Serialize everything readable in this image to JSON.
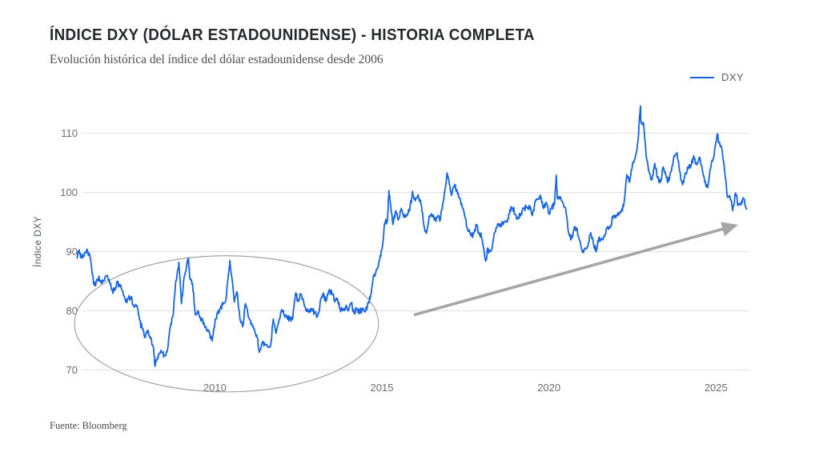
{
  "header": {
    "title": "ÍNDICE DXY (DÓLAR ESTADOUNIDENSE) - HISTORIA COMPLETA",
    "subtitle": "Evolución histórica del índice del dólar estadounidense desde 2006"
  },
  "legend": {
    "label": "DXY"
  },
  "y_axis_title": "Índice DXY",
  "source": "Fuente: Bloomberg",
  "colors": {
    "line": "#1464e4",
    "grid": "#e0e0e0",
    "tick_text": "#6e6e6e",
    "annotation_arrow": "#a6a6a6",
    "annotation_ellipse": "#9a9a9a"
  },
  "chart_data": {
    "type": "line",
    "title": "ÍNDICE DXY (DÓLAR ESTADOUNIDENSE) - HISTORIA COMPLETA",
    "subtitle": "Evolución histórica del índice del dólar estadounidense desde 2006",
    "xlabel": "",
    "ylabel": "Índice DXY",
    "x_ticks": [
      2010,
      2015,
      2020,
      2025
    ],
    "y_ticks": [
      70,
      80,
      90,
      100,
      110
    ],
    "x_range": [
      2005.88,
      2025.95
    ],
    "ylim": [
      66,
      117
    ],
    "grid": "horizontal-only",
    "legend_position": "top-right",
    "series": [
      {
        "name": "DXY",
        "cadence": "monthly (values are month-end closes, Jan 2006 - Nov 2025)",
        "first_month_x": 2006.083,
        "monthly_values": [
          89.2,
          90.4,
          89.5,
          86.2,
          84.2,
          85.4,
          85.1,
          85.0,
          85.9,
          85.3,
          83.5,
          83.4,
          85.0,
          84.1,
          83.2,
          81.5,
          82.2,
          82.4,
          80.6,
          80.9,
          78.4,
          76.9,
          75.5,
          76.7,
          75.5,
          73.7,
          71.8,
          72.7,
          72.9,
          72.5,
          73.4,
          77.2,
          79.1,
          85.1,
          87.4,
          81.2,
          85.8,
          88.0,
          85.4,
          84.6,
          79.3,
          80.0,
          78.3,
          78.1,
          76.7,
          76.4,
          74.9,
          77.9,
          79.5,
          80.4,
          81.1,
          81.9,
          86.6,
          86.0,
          81.5,
          83.2,
          78.7,
          77.3,
          81.2,
          79.0,
          77.7,
          76.9,
          75.9,
          73.0,
          74.6,
          74.3,
          73.9,
          74.1,
          78.6,
          76.2,
          78.3,
          80.2,
          79.3,
          78.7,
          79.0,
          78.8,
          83.0,
          81.6,
          82.8,
          81.2,
          79.9,
          80.0,
          80.2,
          79.8,
          79.2,
          81.9,
          83.0,
          81.7,
          83.4,
          83.1,
          81.5,
          82.1,
          80.2,
          80.2,
          80.7,
          80.0,
          81.3,
          79.7,
          80.2,
          79.5,
          80.4,
          79.8,
          81.4,
          82.7,
          86.0,
          86.9,
          88.4,
          90.3,
          94.8,
          95.3,
          98.4,
          94.6,
          96.9,
          95.5,
          97.3,
          95.8,
          96.3,
          97.0,
          100.2,
          98.6,
          99.6,
          98.2,
          94.6,
          93.1,
          95.9,
          96.1,
          95.5,
          96.0,
          95.4,
          98.4,
          101.5,
          102.2,
          99.5,
          101.1,
          100.4,
          99.0,
          97.3,
          95.6,
          93.4,
          92.7,
          93.1,
          94.6,
          93.1,
          92.1,
          89.1,
          90.6,
          90.0,
          91.8,
          94.0,
          94.5,
          94.6,
          95.1,
          95.0,
          97.1,
          97.3,
          96.2,
          95.6,
          96.2,
          97.3,
          97.5,
          97.8,
          96.1,
          98.5,
          98.9,
          99.4,
          97.3,
          98.3,
          96.4,
          97.4,
          98.1,
          99.0,
          99.0,
          98.3,
          97.4,
          93.3,
          92.1,
          93.9,
          94.0,
          91.9,
          89.9,
          90.6,
          90.9,
          93.2,
          91.3,
          90.0,
          92.4,
          92.2,
          92.6,
          94.2,
          94.1,
          96.0,
          95.7,
          96.5,
          96.7,
          98.3,
          103.0,
          101.8,
          104.7,
          105.9,
          108.8,
          112.1,
          111.5,
          105.9,
          103.5,
          102.1,
          104.9,
          102.5,
          101.7,
          104.3,
          102.9,
          101.9,
          103.6,
          106.2,
          106.7,
          103.5,
          101.3,
          103.3,
          104.1,
          104.5,
          106.2,
          104.7,
          105.9,
          104.1,
          101.7,
          100.8,
          104.0,
          105.7,
          108.5,
          108.4,
          107.6,
          104.2,
          99.5,
          99.3,
          96.9,
          99.9,
          97.8,
          97.9,
          98.9,
          97.2
        ],
        "pre_2006_points": [
          [
            2005.88,
            88.9
          ],
          [
            2005.94,
            90.3
          ],
          [
            2005.99,
            89.0
          ]
        ],
        "intramonth_extremes": [
          [
            2008.2,
            70.9
          ],
          [
            2008.92,
            88.2
          ],
          [
            2009.21,
            88.9
          ],
          [
            2010.45,
            88.5
          ],
          [
            2015.21,
            100.3
          ],
          [
            2016.95,
            103.3
          ],
          [
            2018.12,
            88.6
          ],
          [
            2020.22,
            102.9
          ],
          [
            2022.74,
            114.6
          ],
          [
            2025.04,
            109.9
          ]
        ]
      }
    ],
    "annotations": {
      "ellipse": {
        "meaning": "circles the 2006-2014 low period",
        "center_year": 2010.35,
        "center_value": 77.8,
        "radius_years": 4.55,
        "radius_units": 11.5
      },
      "arrow": {
        "meaning": "upward trend arrow",
        "from_year": 2015.96,
        "from_value": 79.3,
        "to_year": 2025.58,
        "to_value": 94.4
      }
    }
  }
}
